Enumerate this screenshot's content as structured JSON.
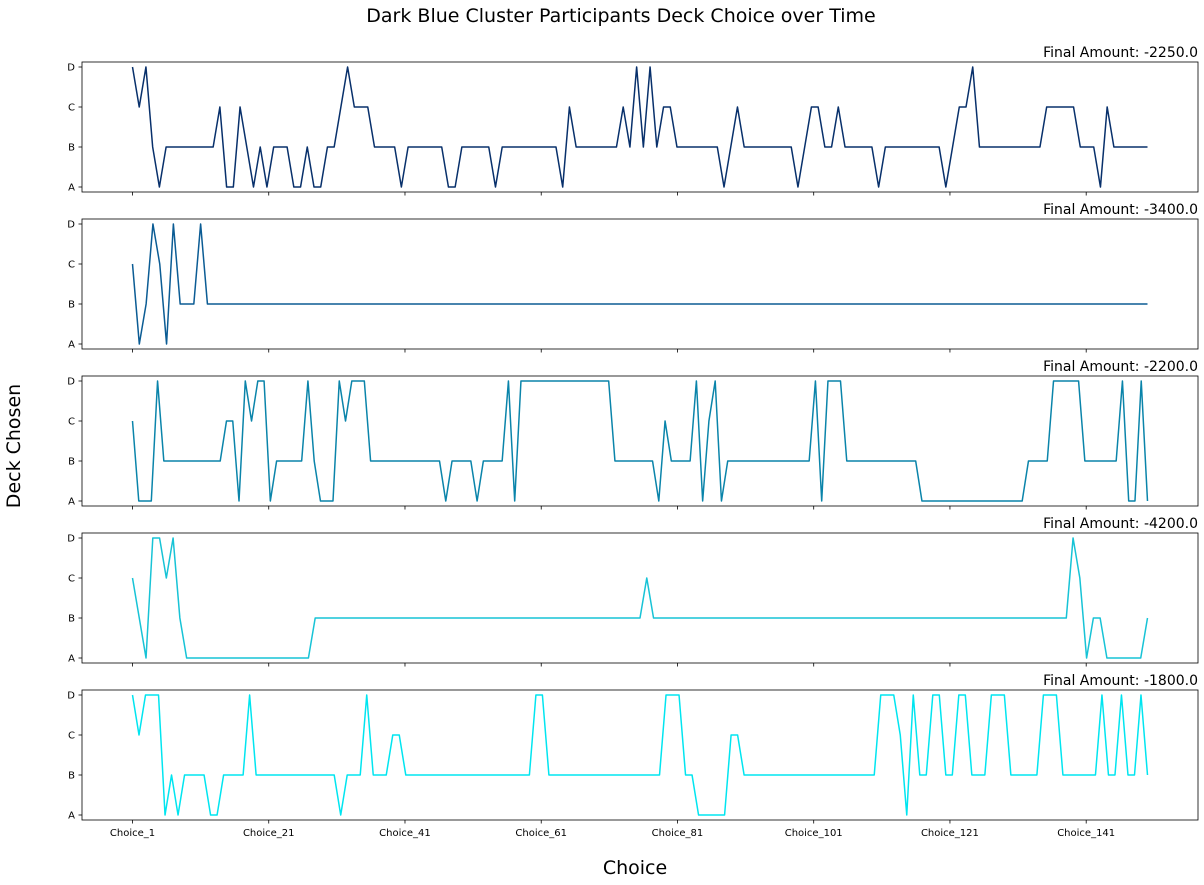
{
  "chart_data": {
    "type": "line",
    "title": "Dark Blue Cluster Participants Deck Choice over Time",
    "xlabel": "Choice",
    "ylabel": "Deck Chosen",
    "y_categories": [
      "A",
      "B",
      "C",
      "D"
    ],
    "x_tick_labels": [
      "Choice_1",
      "Choice_21",
      "Choice_41",
      "Choice_61",
      "Choice_81",
      "Choice_101",
      "Choice_121",
      "Choice_141"
    ],
    "x_tick_values": [
      1,
      21,
      41,
      61,
      81,
      101,
      121,
      141
    ],
    "x_range": [
      1,
      150
    ],
    "grid": false,
    "panels": [
      {
        "annotation": "Final Amount: -2250.0",
        "color": "#08306b",
        "values": [
          "D",
          "C",
          "D",
          "B",
          "A",
          "B",
          "B",
          "B",
          "B",
          "B",
          "B",
          "B",
          "B",
          "C",
          "A",
          "A",
          "C",
          "B",
          "A",
          "B",
          "A",
          "B",
          "B",
          "B",
          "A",
          "A",
          "B",
          "A",
          "A",
          "B",
          "B",
          "C",
          "D",
          "C",
          "C",
          "C",
          "B",
          "B",
          "B",
          "B",
          "A",
          "B",
          "B",
          "B",
          "B",
          "B",
          "B",
          "A",
          "A",
          "B",
          "B",
          "B",
          "B",
          "B",
          "A",
          "B",
          "B",
          "B",
          "B",
          "B",
          "B",
          "B",
          "B",
          "B",
          "A",
          "C",
          "B",
          "B",
          "B",
          "B",
          "B",
          "B",
          "B",
          "C",
          "B",
          "D",
          "B",
          "D",
          "B",
          "C",
          "C",
          "B",
          "B",
          "B",
          "B",
          "B",
          "B",
          "B",
          "A",
          "B",
          "C",
          "B",
          "B",
          "B",
          "B",
          "B",
          "B",
          "B",
          "B",
          "A",
          "B",
          "C",
          "C",
          "B",
          "B",
          "C",
          "B",
          "B",
          "B",
          "B",
          "B",
          "A",
          "B",
          "B",
          "B",
          "B",
          "B",
          "B",
          "B",
          "B",
          "B",
          "A",
          "B",
          "C",
          "C",
          "D",
          "B",
          "B",
          "B",
          "B",
          "B",
          "B",
          "B",
          "B",
          "B",
          "B",
          "C",
          "C",
          "C",
          "C",
          "C",
          "B",
          "B",
          "B",
          "A",
          "C",
          "B",
          "B",
          "B",
          "B",
          "B",
          "B"
        ]
      },
      {
        "annotation": "Final Amount: -3400.0",
        "color": "#0b5c94",
        "values": [
          "C",
          "A",
          "B",
          "D",
          "C",
          "A",
          "D",
          "B",
          "B",
          "B",
          "D",
          "B",
          "B",
          "B",
          "B",
          "B",
          "B",
          "B",
          "B",
          "B",
          "B",
          "B",
          "B",
          "B",
          "B",
          "B",
          "B",
          "B",
          "B",
          "B",
          "B",
          "B",
          "B",
          "B",
          "B",
          "B",
          "B",
          "B",
          "B",
          "B",
          "B",
          "B",
          "B",
          "B",
          "B",
          "B",
          "B",
          "B",
          "B",
          "B",
          "B",
          "B",
          "B",
          "B",
          "B",
          "B",
          "B",
          "B",
          "B",
          "B",
          "B",
          "B",
          "B",
          "B",
          "B",
          "B",
          "B",
          "B",
          "B",
          "B",
          "B",
          "B",
          "B",
          "B",
          "B",
          "B",
          "B",
          "B",
          "B",
          "B",
          "B",
          "B",
          "B",
          "B",
          "B",
          "B",
          "B",
          "B",
          "B",
          "B",
          "B",
          "B",
          "B",
          "B",
          "B",
          "B",
          "B",
          "B",
          "B",
          "B",
          "B",
          "B",
          "B",
          "B",
          "B",
          "B",
          "B",
          "B",
          "B",
          "B",
          "B",
          "B",
          "B",
          "B",
          "B",
          "B",
          "B",
          "B",
          "B",
          "B",
          "B",
          "B",
          "B",
          "B",
          "B",
          "B",
          "B",
          "B",
          "B",
          "B",
          "B",
          "B",
          "B",
          "B",
          "B",
          "B",
          "B",
          "B",
          "B",
          "B",
          "B",
          "B",
          "B",
          "B",
          "B",
          "B",
          "B",
          "B",
          "B",
          "B"
        ]
      },
      {
        "annotation": "Final Amount: -2200.0",
        "color": "#0a84aa",
        "values": [
          "C",
          "A",
          "A",
          "A",
          "D",
          "B",
          "B",
          "B",
          "B",
          "B",
          "B",
          "B",
          "B",
          "B",
          "B",
          "C",
          "C",
          "A",
          "D",
          "C",
          "D",
          "D",
          "A",
          "B",
          "B",
          "B",
          "B",
          "B",
          "D",
          "B",
          "A",
          "A",
          "A",
          "D",
          "C",
          "D",
          "D",
          "D",
          "B",
          "B",
          "B",
          "B",
          "B",
          "B",
          "B",
          "B",
          "B",
          "B",
          "B",
          "B",
          "A",
          "B",
          "B",
          "B",
          "B",
          "A",
          "B",
          "B",
          "B",
          "B",
          "D",
          "A",
          "D",
          "D",
          "D",
          "D",
          "D",
          "D",
          "D",
          "D",
          "D",
          "D",
          "D",
          "D",
          "D",
          "D",
          "D",
          "B",
          "B",
          "B",
          "B",
          "B",
          "B",
          "B",
          "A",
          "C",
          "B",
          "B",
          "B",
          "B",
          "D",
          "A",
          "C",
          "D",
          "A",
          "B",
          "B",
          "B",
          "B",
          "B",
          "B",
          "B",
          "B",
          "B",
          "B",
          "B",
          "B",
          "B",
          "B",
          "D",
          "A",
          "D",
          "D",
          "D",
          "B",
          "B",
          "B",
          "B",
          "B",
          "B",
          "B",
          "B",
          "B",
          "B",
          "B",
          "B",
          "A",
          "A",
          "A",
          "A",
          "A",
          "A",
          "A",
          "A",
          "A",
          "A",
          "A",
          "A",
          "A",
          "A",
          "A",
          "A",
          "A",
          "B",
          "B",
          "B",
          "B",
          "D",
          "D",
          "D",
          "D",
          "D",
          "B",
          "B",
          "B",
          "B",
          "B",
          "B",
          "D",
          "A",
          "A",
          "D",
          "A"
        ]
      },
      {
        "annotation": "Final Amount: -4200.0",
        "color": "#17c3d6",
        "values": [
          "C",
          "B",
          "A",
          "D",
          "D",
          "C",
          "D",
          "B",
          "A",
          "A",
          "A",
          "A",
          "A",
          "A",
          "A",
          "A",
          "A",
          "A",
          "A",
          "A",
          "A",
          "A",
          "A",
          "A",
          "A",
          "A",
          "A",
          "B",
          "B",
          "B",
          "B",
          "B",
          "B",
          "B",
          "B",
          "B",
          "B",
          "B",
          "B",
          "B",
          "B",
          "B",
          "B",
          "B",
          "B",
          "B",
          "B",
          "B",
          "B",
          "B",
          "B",
          "B",
          "B",
          "B",
          "B",
          "B",
          "B",
          "B",
          "B",
          "B",
          "B",
          "B",
          "B",
          "B",
          "B",
          "B",
          "B",
          "B",
          "B",
          "B",
          "B",
          "B",
          "B",
          "B",
          "B",
          "B",
          "C",
          "B",
          "B",
          "B",
          "B",
          "B",
          "B",
          "B",
          "B",
          "B",
          "B",
          "B",
          "B",
          "B",
          "B",
          "B",
          "B",
          "B",
          "B",
          "B",
          "B",
          "B",
          "B",
          "B",
          "B",
          "B",
          "B",
          "B",
          "B",
          "B",
          "B",
          "B",
          "B",
          "B",
          "B",
          "B",
          "B",
          "B",
          "B",
          "B",
          "B",
          "B",
          "B",
          "B",
          "B",
          "B",
          "B",
          "B",
          "B",
          "B",
          "B",
          "B",
          "B",
          "B",
          "B",
          "B",
          "B",
          "B",
          "B",
          "B",
          "B",
          "B",
          "B",
          "D",
          "C",
          "A",
          "B",
          "B",
          "A",
          "A",
          "A",
          "A",
          "A",
          "A",
          "B"
        ]
      },
      {
        "annotation": "Final Amount: -1800.0",
        "color": "#00e5f0",
        "values": [
          "D",
          "C",
          "D",
          "D",
          "D",
          "A",
          "B",
          "A",
          "B",
          "B",
          "B",
          "B",
          "A",
          "A",
          "B",
          "B",
          "B",
          "B",
          "D",
          "B",
          "B",
          "B",
          "B",
          "B",
          "B",
          "B",
          "B",
          "B",
          "B",
          "B",
          "B",
          "B",
          "A",
          "B",
          "B",
          "B",
          "D",
          "B",
          "B",
          "B",
          "C",
          "C",
          "B",
          "B",
          "B",
          "B",
          "B",
          "B",
          "B",
          "B",
          "B",
          "B",
          "B",
          "B",
          "B",
          "B",
          "B",
          "B",
          "B",
          "B",
          "B",
          "B",
          "D",
          "D",
          "B",
          "B",
          "B",
          "B",
          "B",
          "B",
          "B",
          "B",
          "B",
          "B",
          "B",
          "B",
          "B",
          "B",
          "B",
          "B",
          "B",
          "B",
          "D",
          "D",
          "D",
          "B",
          "B",
          "A",
          "A",
          "A",
          "A",
          "A",
          "C",
          "C",
          "B",
          "B",
          "B",
          "B",
          "B",
          "B",
          "B",
          "B",
          "B",
          "B",
          "B",
          "B",
          "B",
          "B",
          "B",
          "B",
          "B",
          "B",
          "B",
          "B",
          "B",
          "D",
          "D",
          "D",
          "C",
          "A",
          "D",
          "B",
          "B",
          "D",
          "D",
          "B",
          "B",
          "D",
          "D",
          "B",
          "B",
          "B",
          "D",
          "D",
          "D",
          "B",
          "B",
          "B",
          "B",
          "B",
          "D",
          "D",
          "D",
          "B",
          "B",
          "B",
          "B",
          "B",
          "B",
          "D",
          "B",
          "B",
          "D",
          "B",
          "B",
          "D",
          "B"
        ]
      }
    ]
  }
}
